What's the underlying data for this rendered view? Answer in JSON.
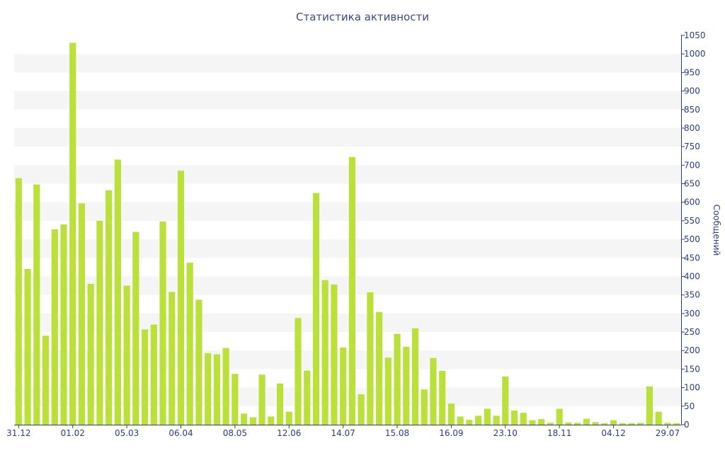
{
  "chart_data": {
    "type": "bar",
    "title": "Статистика активности",
    "xlabel": "",
    "ylabel": "Сообщений",
    "ylim": [
      0,
      1050
    ],
    "y_ticks": [
      0,
      50,
      100,
      150,
      200,
      250,
      300,
      350,
      400,
      450,
      500,
      550,
      600,
      650,
      700,
      750,
      800,
      850,
      900,
      950,
      1000,
      1050
    ],
    "x_tick_labels": [
      {
        "index": 0,
        "label": "31.12"
      },
      {
        "index": 6,
        "label": "01.02"
      },
      {
        "index": 12,
        "label": "05.03"
      },
      {
        "index": 18,
        "label": "06.04"
      },
      {
        "index": 24,
        "label": "08.05"
      },
      {
        "index": 30,
        "label": "12.06"
      },
      {
        "index": 36,
        "label": "14.07"
      },
      {
        "index": 42,
        "label": "15.08"
      },
      {
        "index": 48,
        "label": "16.09"
      },
      {
        "index": 54,
        "label": "23.10"
      },
      {
        "index": 60,
        "label": "18.11"
      },
      {
        "index": 66,
        "label": "04.12"
      },
      {
        "index": 72,
        "label": "29.07"
      }
    ],
    "values": [
      665,
      420,
      648,
      240,
      527,
      540,
      1030,
      597,
      380,
      550,
      632,
      715,
      375,
      520,
      257,
      270,
      548,
      358,
      685,
      437,
      337,
      193,
      190,
      207,
      137,
      30,
      20,
      135,
      22,
      111,
      35,
      288,
      146,
      625,
      390,
      378,
      208,
      722,
      82,
      357,
      304,
      181,
      245,
      210,
      260,
      95,
      180,
      145,
      57,
      22,
      13,
      24,
      43,
      24,
      130,
      38,
      32,
      12,
      15,
      5,
      43,
      6,
      5,
      16,
      7,
      4,
      12,
      4,
      4,
      5,
      103,
      35,
      5,
      4
    ],
    "colors": {
      "bar": "#bbe03a",
      "band": "#f5f5f5",
      "axis": "#2a3f7a",
      "text": "#3b4a7a"
    },
    "grid": "horizontal-bands",
    "y_axis_position": "right"
  }
}
